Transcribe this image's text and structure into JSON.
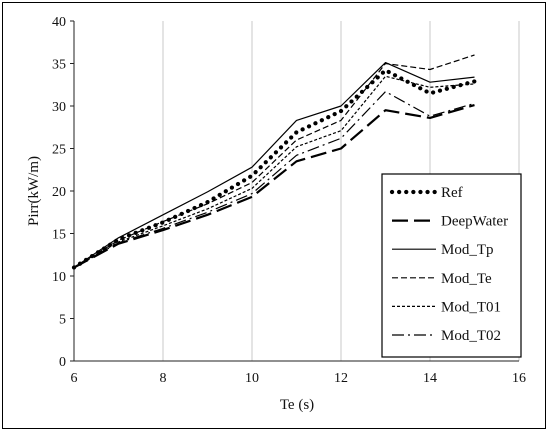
{
  "chart_data": {
    "type": "line",
    "xlabel": "Te (s)",
    "ylabel": "Pirr(kW/m)",
    "xlim": [
      6,
      16
    ],
    "ylim": [
      0,
      40
    ],
    "xticks": [
      "6",
      "8",
      "10",
      "12",
      "14",
      "16"
    ],
    "yticks": [
      "0",
      "5",
      "10",
      "15",
      "20",
      "25",
      "30",
      "35",
      "40"
    ],
    "grid": "vertical",
    "legend_position": "bottom-right",
    "x": [
      6,
      7,
      8,
      9,
      10,
      11,
      12,
      13,
      14,
      15
    ],
    "series": [
      {
        "name": "Ref",
        "style": "dotted-bold",
        "values": [
          11.0,
          14.3,
          16.3,
          18.7,
          21.8,
          26.9,
          29.4,
          34.2,
          31.5,
          32.9
        ]
      },
      {
        "name": "DeepWater",
        "style": "long-dash",
        "values": [
          11.0,
          13.8,
          15.4,
          17.2,
          19.3,
          23.5,
          25.0,
          29.5,
          28.6,
          30.1
        ]
      },
      {
        "name": "Mod_Tp",
        "style": "solid",
        "values": [
          11.0,
          14.5,
          17.2,
          19.9,
          22.8,
          28.3,
          30.0,
          35.1,
          32.8,
          33.4
        ]
      },
      {
        "name": "Mod_Te",
        "style": "dash",
        "values": [
          11.0,
          14.2,
          16.4,
          18.5,
          21.0,
          26.0,
          28.3,
          35.0,
          34.3,
          36.0
        ]
      },
      {
        "name": "Mod_T01",
        "style": "short-dash",
        "values": [
          11.0,
          14.0,
          15.9,
          17.9,
          20.3,
          25.2,
          27.1,
          33.5,
          32.2,
          32.6
        ]
      },
      {
        "name": "Mod_T02",
        "style": "dash-dot",
        "values": [
          11.0,
          13.9,
          15.6,
          17.5,
          19.7,
          24.2,
          26.2,
          31.7,
          28.8,
          30.3
        ]
      }
    ]
  }
}
